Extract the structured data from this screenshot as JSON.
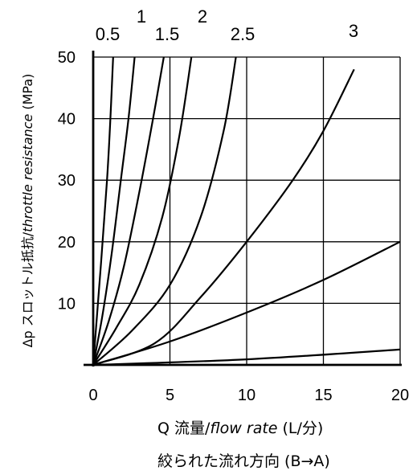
{
  "chart_data": {
    "type": "line",
    "xlabel_prefix": "Q 流量/",
    "xlabel_italic": "flow rate",
    "xlabel_suffix": " (L/分)",
    "direction_note": "絞られた流れ方向 (B→A)",
    "ylabel_prefix": "Δp スロットル抵抗/",
    "ylabel_italic": "throttle resistance",
    "ylabel_suffix": " (MPa)",
    "xlim": [
      0,
      20
    ],
    "ylim": [
      0,
      50
    ],
    "x_ticks": [
      0,
      5,
      10,
      15,
      20
    ],
    "y_ticks": [
      10,
      20,
      30,
      40,
      50
    ],
    "grid": true,
    "series": [
      {
        "name": "0.5",
        "x": [
          0,
          0.9,
          1.3
        ],
        "y": [
          0,
          30,
          50
        ]
      },
      {
        "name": "1",
        "x": [
          0,
          0.6,
          1.2,
          1.8,
          2.3,
          2.7
        ],
        "y": [
          0,
          8,
          18,
          30,
          40,
          50
        ]
      },
      {
        "name": "1.5",
        "x": [
          0,
          1.0,
          2.0,
          3.0,
          3.9,
          4.6
        ],
        "y": [
          0,
          7,
          16,
          28,
          40,
          50
        ]
      },
      {
        "name": "2",
        "x": [
          0,
          1.5,
          3.0,
          4.5,
          5.6,
          6.4
        ],
        "y": [
          0,
          6,
          13,
          24,
          37,
          50
        ]
      },
      {
        "name": "2.5",
        "x": [
          0,
          2.5,
          5.0,
          7.0,
          8.5,
          9.3
        ],
        "y": [
          0,
          5.5,
          13,
          24,
          38,
          50
        ]
      },
      {
        "name": "3",
        "x": [
          0,
          4.0,
          7.0,
          10.0,
          13.0,
          15.0,
          17.0
        ],
        "y": [
          0,
          3.5,
          11,
          20,
          30,
          38,
          48
        ]
      },
      {
        "name": "",
        "x": [
          0,
          5,
          10,
          15,
          20
        ],
        "y": [
          0,
          3.8,
          8.5,
          13.8,
          20
        ]
      },
      {
        "name": "",
        "x": [
          0,
          10,
          20
        ],
        "y": [
          0,
          0.9,
          2.5
        ]
      }
    ]
  }
}
